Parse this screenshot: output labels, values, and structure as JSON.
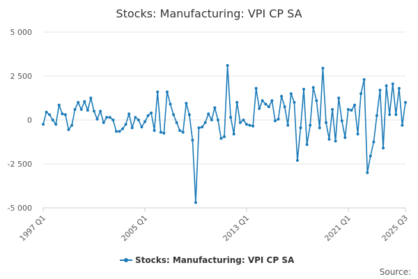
{
  "chart_data": {
    "type": "line",
    "title": "Stocks: Manufacturing: VPI CP SA",
    "xlabel": "",
    "ylabel": "",
    "ylim": [
      -5000,
      5000
    ],
    "yticks": [
      5000,
      2500,
      0,
      -2500,
      -5000
    ],
    "ytick_labels": [
      "5 000",
      "2 500",
      "0",
      "-2 500",
      "-5 000"
    ],
    "xtick_labels": [
      "1997 Q1",
      "2005 Q1",
      "2013 Q1",
      "2021 Q1",
      "2025 Q3"
    ],
    "xtick_index": [
      0,
      32,
      64,
      96,
      114
    ],
    "grid": "horizontal",
    "legend_position": "bottom",
    "color": "#1a7ab8",
    "series": [
      {
        "name": "Stocks: Manufacturing: VPI CP SA",
        "x_start": "1997 Q1",
        "frequency": "quarterly",
        "values": [
          -250,
          450,
          300,
          0,
          -250,
          850,
          350,
          300,
          -550,
          -300,
          600,
          1000,
          600,
          1050,
          550,
          1250,
          500,
          50,
          500,
          -150,
          150,
          150,
          0,
          -650,
          -650,
          -500,
          -250,
          350,
          -450,
          150,
          0,
          -400,
          -100,
          250,
          400,
          -600,
          1600,
          -700,
          -750,
          1600,
          900,
          300,
          -150,
          -600,
          -700,
          950,
          300,
          -1150,
          -4700,
          -450,
          -400,
          -150,
          350,
          0,
          700,
          0,
          -1050,
          -950,
          3100,
          150,
          -800,
          1000,
          -150,
          0,
          -250,
          -300,
          -350,
          1800,
          650,
          1100,
          900,
          750,
          1100,
          -50,
          50,
          1350,
          750,
          -300,
          1500,
          1000,
          -2300,
          -450,
          1750,
          -1400,
          -300,
          1850,
          1100,
          -450,
          2950,
          -150,
          -1100,
          600,
          -1200,
          1250,
          -50,
          -1000,
          600,
          550,
          850,
          -800,
          1500,
          2300,
          -3000,
          -2050,
          -1250,
          250,
          1700,
          -1600,
          1950,
          300,
          2050,
          300,
          1800,
          -300,
          1000
        ]
      }
    ],
    "source_label": "Source:"
  }
}
